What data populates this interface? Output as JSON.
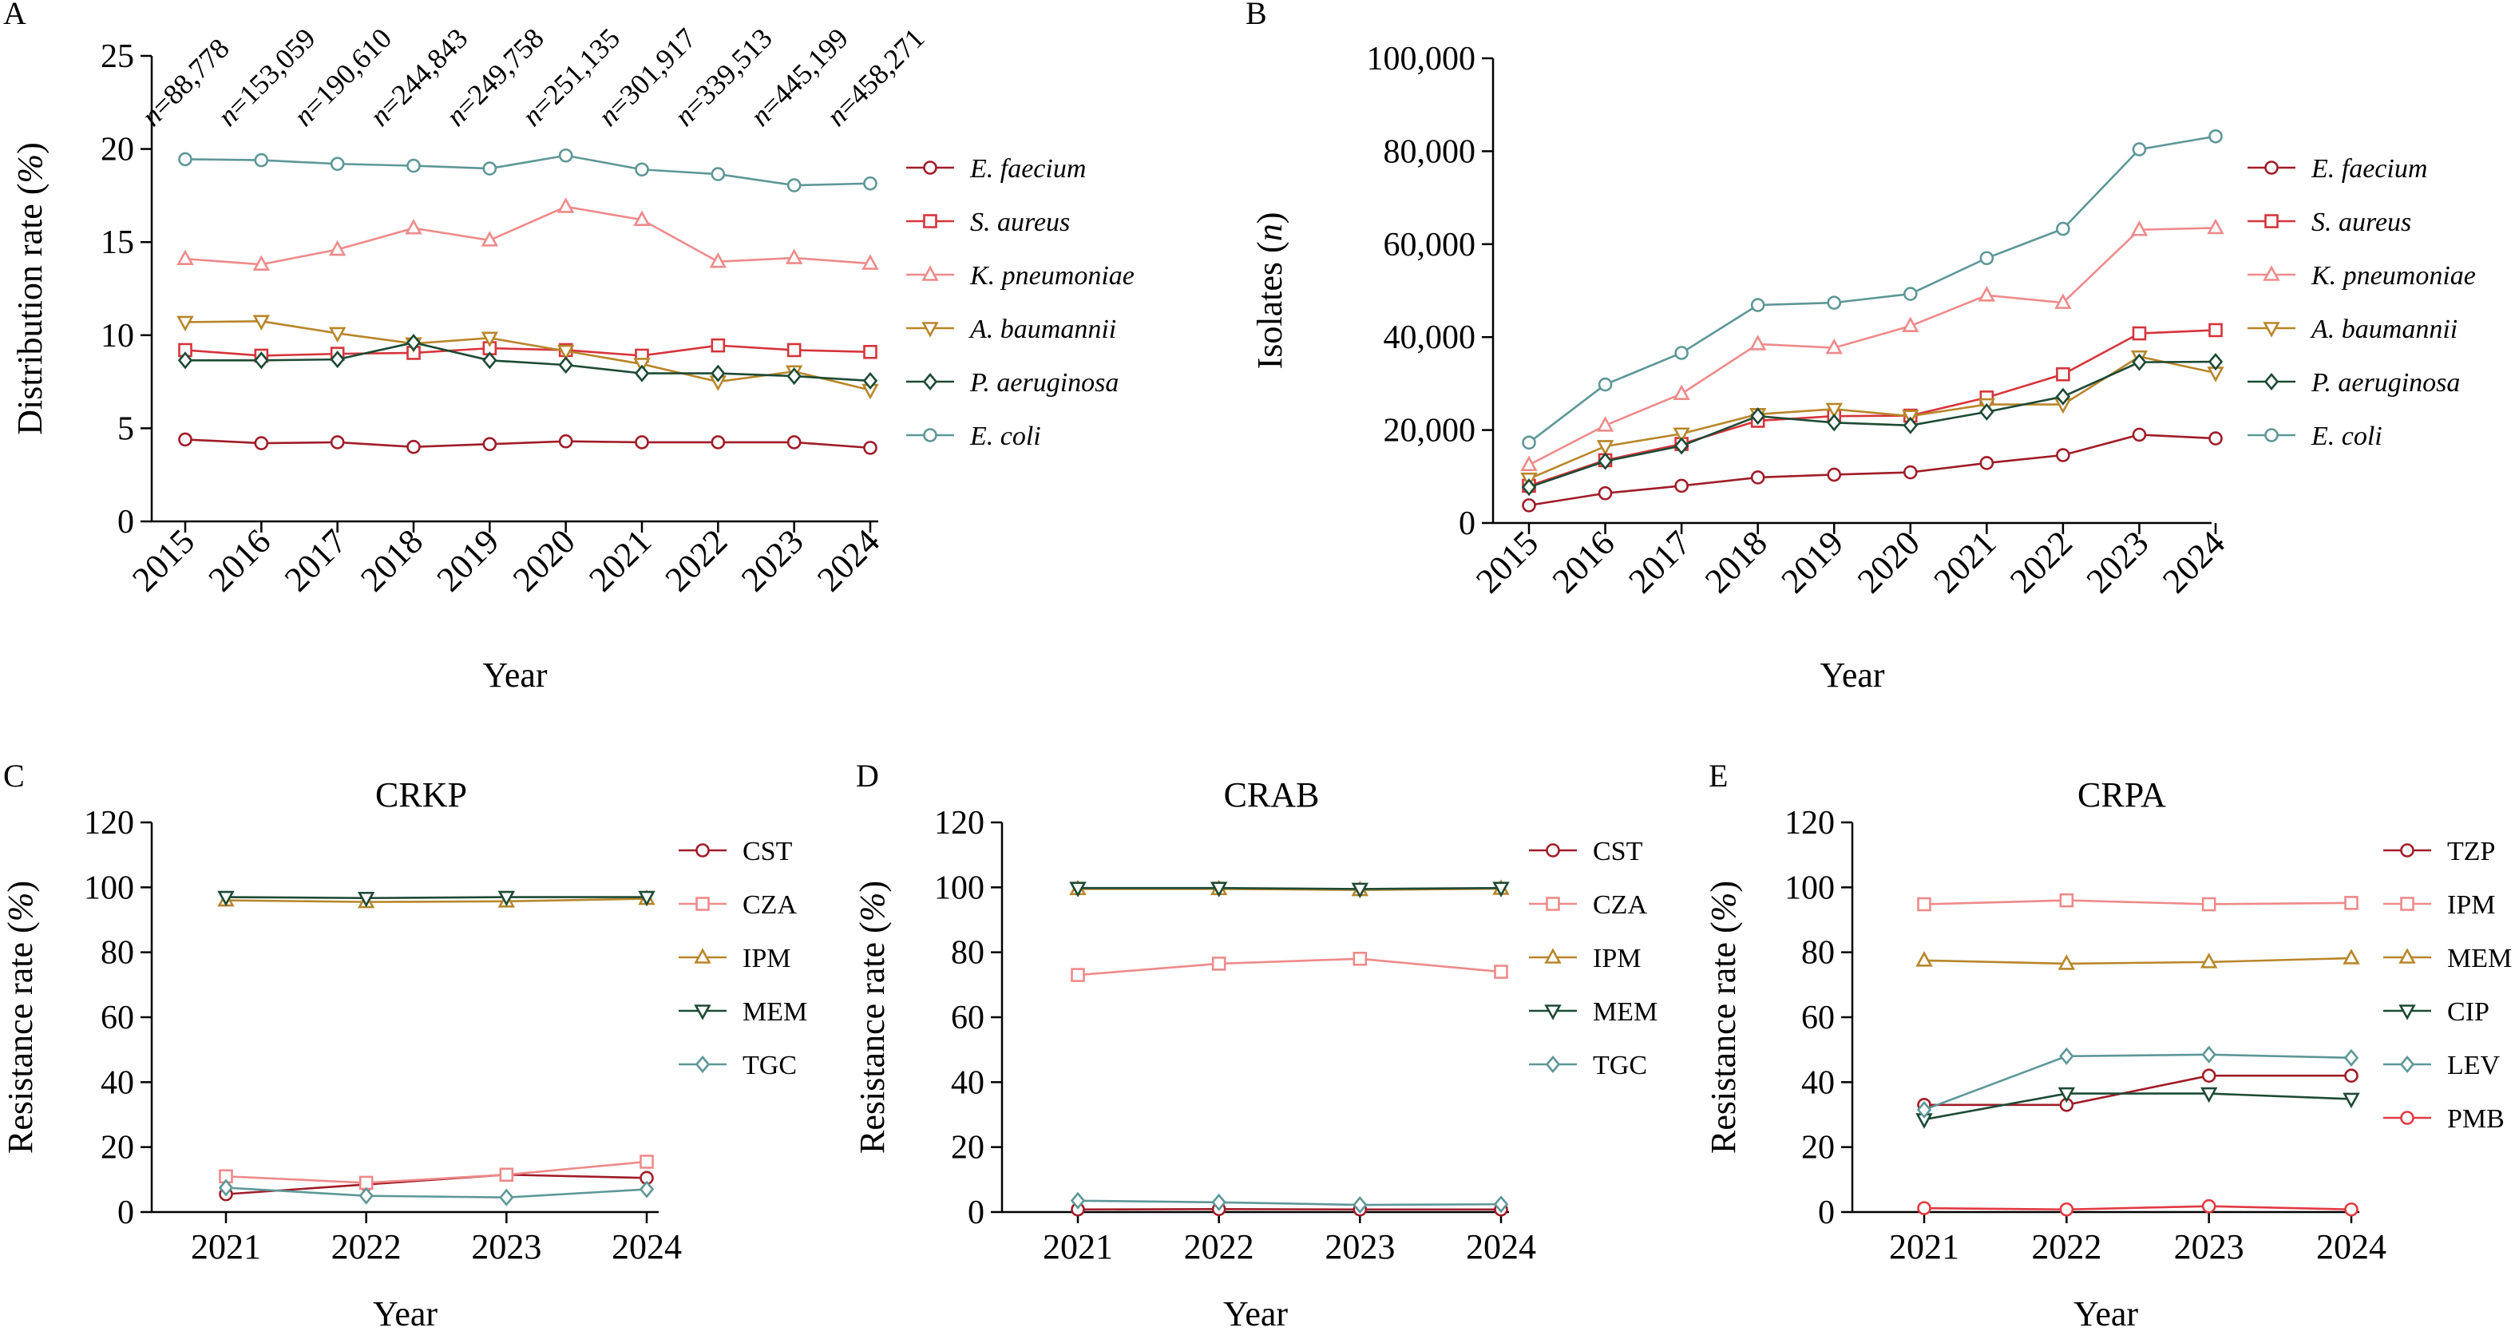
{
  "chart_data": [
    {
      "panel": "A",
      "type": "line",
      "title": "",
      "xlabel": "Year",
      "ylabel": "Distribution rate (%)",
      "ylim": [
        0,
        25
      ],
      "yticks": [
        "0",
        "5",
        "10",
        "15",
        "20",
        "25"
      ],
      "categories": [
        "2015",
        "2016",
        "2017",
        "2018",
        "2019",
        "2020",
        "2021",
        "2022",
        "2023",
        "2024"
      ],
      "annotations": [
        "n=88,778",
        "n=153,059",
        "n=190,610",
        "n=244,843",
        "n=249,758",
        "n=251,135",
        "n=301,917",
        "n=339,513",
        "n=445,199",
        "n=458,271"
      ],
      "legend_position": "right",
      "series": [
        {
          "name": "E. faecium",
          "marker": "circle",
          "color": "#a01c28",
          "values": [
            4.4,
            4.2,
            4.25,
            4.0,
            4.15,
            4.3,
            4.25,
            4.25,
            4.25,
            3.95
          ]
        },
        {
          "name": "S. aureus",
          "marker": "square",
          "color": "#d6343b",
          "values": [
            9.2,
            8.9,
            9.0,
            9.05,
            9.3,
            9.2,
            8.9,
            9.45,
            9.2,
            9.1
          ]
        },
        {
          "name": "K. pneumoniae",
          "marker": "triangle-up",
          "color": "#ee8a8a",
          "values": [
            14.1,
            13.8,
            14.6,
            15.75,
            15.1,
            16.9,
            16.2,
            13.95,
            14.15,
            13.85
          ]
        },
        {
          "name": "A. baumannii",
          "marker": "triangle-down",
          "color": "#b8862a",
          "values": [
            10.7,
            10.75,
            10.1,
            9.55,
            9.85,
            9.15,
            8.45,
            7.5,
            8.05,
            7.05
          ]
        },
        {
          "name": "P. aeruginosa",
          "marker": "diamond",
          "color": "#1d4a35",
          "values": [
            8.65,
            8.65,
            8.7,
            9.6,
            8.65,
            8.4,
            7.95,
            7.95,
            7.8,
            7.55
          ]
        },
        {
          "name": "E. coli",
          "marker": "circle",
          "color": "#5e9797",
          "values": [
            19.45,
            19.4,
            19.2,
            19.1,
            18.95,
            19.65,
            18.9,
            18.65,
            18.05,
            18.15
          ]
        }
      ]
    },
    {
      "panel": "B",
      "type": "line",
      "title": "",
      "xlabel": "Year",
      "ylabel": "Isolates (n)",
      "ylim": [
        0,
        100000
      ],
      "yticks": [
        "0",
        "20,000",
        "40,000",
        "60,000",
        "80,000",
        "100,000"
      ],
      "categories": [
        "2015",
        "2016",
        "2017",
        "2018",
        "2019",
        "2020",
        "2021",
        "2022",
        "2023",
        "2024"
      ],
      "legend_position": "right",
      "series": [
        {
          "name": "E. faecium",
          "marker": "circle",
          "color": "#a01c28",
          "values": [
            3800,
            6400,
            8000,
            9800,
            10400,
            10900,
            12900,
            14600,
            19000,
            18200
          ]
        },
        {
          "name": "S. aureus",
          "marker": "square",
          "color": "#d6343b",
          "values": [
            8000,
            13500,
            17000,
            22000,
            23000,
            23100,
            27000,
            32000,
            40800,
            41500
          ]
        },
        {
          "name": "K. pneumoniae",
          "marker": "triangle-up",
          "color": "#ee8a8a",
          "values": [
            12500,
            21000,
            27800,
            38500,
            37700,
            42400,
            49000,
            47400,
            63100,
            63500
          ]
        },
        {
          "name": "A. baumannii",
          "marker": "triangle-down",
          "color": "#b8862a",
          "values": [
            9500,
            16500,
            19200,
            23400,
            24500,
            23000,
            25500,
            25500,
            35800,
            32300
          ]
        },
        {
          "name": "P. aeruginosa",
          "marker": "diamond",
          "color": "#1d4a35",
          "values": [
            7700,
            13300,
            16600,
            23000,
            21600,
            21000,
            23900,
            27200,
            34600,
            34700
          ]
        },
        {
          "name": "E. coli",
          "marker": "circle",
          "color": "#5e9797",
          "values": [
            17300,
            29800,
            36600,
            46900,
            47400,
            49300,
            57000,
            63300,
            80400,
            83200
          ]
        }
      ]
    },
    {
      "panel": "C",
      "type": "line",
      "title": "CRKP",
      "xlabel": "Year",
      "ylabel": "Resistance rate (%)",
      "ylim": [
        0,
        120
      ],
      "yticks": [
        "0",
        "20",
        "40",
        "60",
        "80",
        "100",
        "120"
      ],
      "categories": [
        "2021",
        "2022",
        "2023",
        "2024"
      ],
      "legend_position": "right",
      "series": [
        {
          "name": "CST",
          "marker": "circle",
          "color": "#a01c28",
          "values": [
            5.5,
            8.5,
            11.5,
            10.5
          ]
        },
        {
          "name": "CZA",
          "marker": "square",
          "color": "#ee8a8a",
          "values": [
            11.0,
            9.0,
            11.5,
            15.5
          ]
        },
        {
          "name": "IPM",
          "marker": "triangle-up",
          "color": "#b8862a",
          "values": [
            96.0,
            95.5,
            95.7,
            96.5
          ]
        },
        {
          "name": "MEM",
          "marker": "triangle-down",
          "color": "#1d4a35",
          "values": [
            97.0,
            96.7,
            97.0,
            97.0
          ]
        },
        {
          "name": "TGC",
          "marker": "diamond",
          "color": "#5e9797",
          "values": [
            7.5,
            5.0,
            4.5,
            7.0
          ]
        }
      ]
    },
    {
      "panel": "D",
      "type": "line",
      "title": "CRAB",
      "xlabel": "Year",
      "ylabel": "Resistance rate (%)",
      "ylim": [
        0,
        120
      ],
      "yticks": [
        "0",
        "20",
        "40",
        "60",
        "80",
        "100",
        "120"
      ],
      "categories": [
        "2021",
        "2022",
        "2023",
        "2024"
      ],
      "legend_position": "right",
      "series": [
        {
          "name": "CST",
          "marker": "circle",
          "color": "#a01c28",
          "values": [
            0.8,
            0.9,
            0.8,
            0.8
          ]
        },
        {
          "name": "CZA",
          "marker": "square",
          "color": "#ee8a8a",
          "values": [
            73.0,
            76.5,
            78.0,
            74.0
          ]
        },
        {
          "name": "IPM",
          "marker": "triangle-up",
          "color": "#b8862a",
          "values": [
            99.5,
            99.5,
            99.2,
            99.6
          ]
        },
        {
          "name": "MEM",
          "marker": "triangle-down",
          "color": "#1d4a35",
          "values": [
            99.8,
            99.8,
            99.5,
            99.8
          ]
        },
        {
          "name": "TGC",
          "marker": "diamond",
          "color": "#5e9797",
          "values": [
            3.5,
            3.0,
            2.2,
            2.4
          ]
        }
      ]
    },
    {
      "panel": "E",
      "type": "line",
      "title": "CRPA",
      "xlabel": "Year",
      "ylabel": "Resistance rate (%)",
      "ylim": [
        0,
        120
      ],
      "yticks": [
        "0",
        "20",
        "40",
        "60",
        "80",
        "100",
        "120"
      ],
      "categories": [
        "2021",
        "2022",
        "2023",
        "2024"
      ],
      "legend_position": "right",
      "series": [
        {
          "name": "TZP",
          "marker": "circle",
          "color": "#a01c28",
          "values": [
            33.0,
            33.0,
            42.0,
            42.0
          ]
        },
        {
          "name": "IPM",
          "marker": "square",
          "color": "#ee8a8a",
          "values": [
            94.8,
            96.0,
            94.8,
            95.2
          ]
        },
        {
          "name": "MEM",
          "marker": "triangle-up",
          "color": "#b8862a",
          "values": [
            77.5,
            76.5,
            77.0,
            78.2
          ]
        },
        {
          "name": "CIP",
          "marker": "triangle-down",
          "color": "#1d4a35",
          "values": [
            28.5,
            36.5,
            36.5,
            34.8
          ]
        },
        {
          "name": "LEV",
          "marker": "diamond",
          "color": "#5e9797",
          "values": [
            31.5,
            48.0,
            48.5,
            47.5
          ]
        },
        {
          "name": "PMB",
          "marker": "circle",
          "color": "#e23a43",
          "values": [
            1.2,
            0.8,
            1.8,
            0.8
          ]
        }
      ]
    }
  ]
}
